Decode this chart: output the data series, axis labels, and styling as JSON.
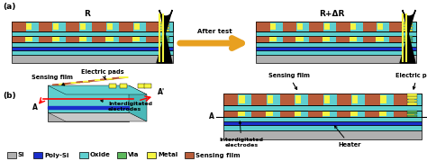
{
  "fig_width": 4.74,
  "fig_height": 1.79,
  "dpi": 100,
  "bg_color": "#ffffff",
  "colors": {
    "si": "#b0b0b0",
    "poly_si": "#1a2ecc",
    "oxide": "#5ecfcf",
    "via": "#5cb85c",
    "metal": "#f5f542",
    "sensing_film": "#b85c3a",
    "black": "#000000",
    "arrow_orange": "#e8a020"
  },
  "legend_items": [
    {
      "label": "Si",
      "color": "#b0b0b0"
    },
    {
      "label": "Poly-Si",
      "color": "#1a2ecc"
    },
    {
      "label": "Oxide",
      "color": "#5ecfcf"
    },
    {
      "label": "Via",
      "color": "#5cb85c"
    },
    {
      "label": "Metal",
      "color": "#f5f542"
    },
    {
      "label": "Sensing film",
      "color": "#b85c3a"
    }
  ]
}
